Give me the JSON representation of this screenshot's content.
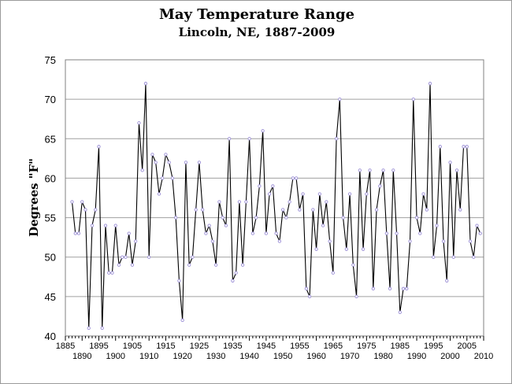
{
  "chart_data": {
    "type": "line",
    "title": "May Temperature Range",
    "subtitle": "Lincoln, NE, 1887-2009",
    "ylabel": "Degrees \"F\"",
    "xlabel": "",
    "xlim": [
      1885,
      2010
    ],
    "ylim": [
      40,
      75
    ],
    "grid": "horizontal",
    "legend": "none",
    "x_ticks_top_row": [
      "1885",
      "1895",
      "1905",
      "1915",
      "1925",
      "1935",
      "1945",
      "1955",
      "1965",
      "1975",
      "1985",
      "1995",
      "2005"
    ],
    "x_ticks_bottom_row": [
      "1890",
      "1900",
      "1910",
      "1920",
      "1930",
      "1940",
      "1950",
      "1960",
      "1970",
      "1980",
      "1990",
      "2000",
      "2010"
    ],
    "y_ticks": [
      "40",
      "45",
      "50",
      "55",
      "60",
      "65",
      "70",
      "75"
    ],
    "x": [
      1887,
      1888,
      1889,
      1890,
      1891,
      1892,
      1893,
      1894,
      1895,
      1896,
      1897,
      1898,
      1899,
      1900,
      1901,
      1902,
      1903,
      1904,
      1905,
      1906,
      1907,
      1908,
      1909,
      1910,
      1911,
      1912,
      1913,
      1914,
      1915,
      1916,
      1917,
      1918,
      1919,
      1920,
      1921,
      1922,
      1923,
      1924,
      1925,
      1926,
      1927,
      1928,
      1929,
      1930,
      1931,
      1932,
      1933,
      1934,
      1935,
      1936,
      1937,
      1938,
      1939,
      1940,
      1941,
      1942,
      1943,
      1944,
      1945,
      1946,
      1947,
      1948,
      1949,
      1950,
      1951,
      1952,
      1953,
      1954,
      1955,
      1956,
      1957,
      1958,
      1959,
      1960,
      1961,
      1962,
      1963,
      1964,
      1965,
      1966,
      1967,
      1968,
      1969,
      1970,
      1971,
      1972,
      1973,
      1974,
      1975,
      1976,
      1977,
      1978,
      1979,
      1980,
      1981,
      1982,
      1983,
      1984,
      1985,
      1986,
      1987,
      1988,
      1989,
      1990,
      1991,
      1992,
      1993,
      1994,
      1995,
      1996,
      1997,
      1998,
      1999,
      2000,
      2001,
      2002,
      2003,
      2004,
      2005,
      2006,
      2007,
      2008,
      2009
    ],
    "series": [
      {
        "values": [
          57,
          53,
          53,
          57,
          56,
          41,
          54,
          56,
          64,
          41,
          54,
          48,
          48,
          54,
          49,
          50,
          50,
          53,
          49,
          52,
          67,
          61,
          72,
          50,
          63,
          62,
          58,
          60,
          63,
          62,
          60,
          55,
          47,
          42,
          62,
          49,
          50,
          56,
          62,
          56,
          53,
          54,
          52,
          49,
          57,
          55,
          54,
          65,
          47,
          48,
          57,
          49,
          57,
          65,
          53,
          55,
          59,
          66,
          53,
          58,
          59,
          53,
          52,
          56,
          55,
          57,
          60,
          60,
          56,
          58,
          46,
          45,
          56,
          51,
          58,
          54,
          57,
          52,
          48,
          65,
          70,
          55,
          51,
          58,
          49,
          45,
          61,
          51,
          58,
          61,
          46,
          56,
          59,
          61,
          53,
          46,
          61,
          53,
          43,
          46,
          46,
          52,
          70,
          55,
          53,
          58,
          56,
          72,
          50,
          54,
          64,
          52,
          47,
          62,
          50,
          61,
          56,
          64,
          64,
          52,
          50,
          54,
          53
        ],
        "color": "#000000",
        "marker_color": "#9b8fd6"
      }
    ]
  }
}
